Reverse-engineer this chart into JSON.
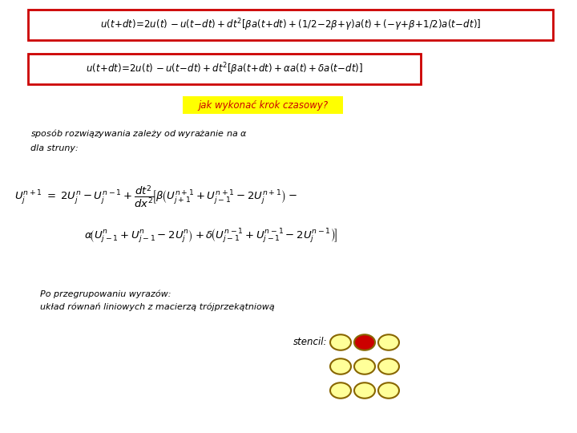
{
  "bg_color": "#ffffff",
  "box1_color": "#cc0000",
  "box2_color": "#cc0000",
  "box_fill": "#ffffff",
  "highlight_text": "jak wykonać krok czasowy?",
  "highlight_bg": "#ffff00",
  "highlight_color": "#cc0000",
  "body_text1": "sposób rozwiązywania zależy od wyrażanie na $\\alpha$",
  "body_text2": "dla struny:",
  "po_text": "Po przegrupowaniu wyrazów:",
  "uklad_text": "układ równań liniowych z macierzą trójprzekątniową",
  "stencil_text": "stencil:",
  "circle_yellow": "#ffff99",
  "circle_red": "#cc0000",
  "circle_edge": "#886600",
  "figw": 7.2,
  "figh": 5.4,
  "dpi": 100
}
